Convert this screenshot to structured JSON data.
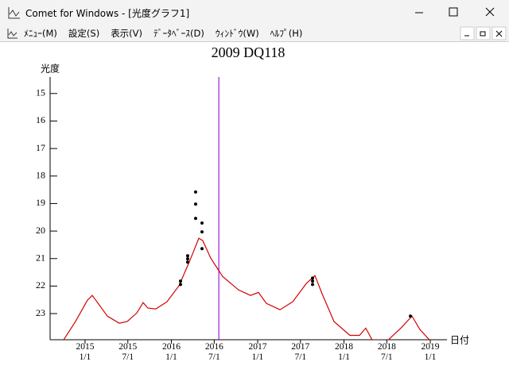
{
  "window": {
    "title": "Comet for Windows - [光度グラフ1]"
  },
  "menu": [
    "ﾒﾆｭｰ(M)",
    "設定(S)",
    "表示(V)",
    "ﾃﾞｰﾀﾍﾞｰｽ(D)",
    "ｳｨﾝﾄﾞｳ(W)",
    "ﾍﾙﾌﾟ(H)"
  ],
  "chart_data": {
    "type": "line",
    "title": "2009 DQ118",
    "y_label": "光度",
    "x_label": "日付",
    "xlim": [
      2014.595,
      2019.175
    ],
    "ylim": [
      23.95,
      14.4
    ],
    "yticks": [
      15,
      16,
      17,
      18,
      19,
      20,
      21,
      22,
      23
    ],
    "xticks": [
      {
        "value": 2015.0,
        "label": "2015\n1/1"
      },
      {
        "value": 2015.496,
        "label": "2015\n7/1"
      },
      {
        "value": 2016.0,
        "label": "2016\n1/1"
      },
      {
        "value": 2016.497,
        "label": "2016\n7/1"
      },
      {
        "value": 2017.0,
        "label": "2017\n1/1"
      },
      {
        "value": 2017.496,
        "label": "2017\n7/1"
      },
      {
        "value": 2018.0,
        "label": "2018\n1/1"
      },
      {
        "value": 2018.496,
        "label": "2018\n7/1"
      },
      {
        "value": 2019.0,
        "label": "2019\n1/1"
      }
    ],
    "marker_x": 2016.55,
    "marker_color": "#9a1ee0",
    "series": [
      {
        "color": "#d40000",
        "x": [
          2014.751,
          2014.889,
          2015.028,
          2015.083,
          2015.138,
          2015.258,
          2015.396,
          2015.488,
          2015.599,
          2015.673,
          2015.728,
          2015.82,
          2015.949,
          2016.088,
          2016.207,
          2016.318,
          2016.364,
          2016.456,
          2016.594,
          2016.779,
          2016.917,
          2017.009,
          2017.101,
          2017.258,
          2017.406,
          2017.562,
          2017.664,
          2017.747,
          2017.885,
          2018.069,
          2018.18,
          2018.253,
          2018.327,
          2018.512,
          2018.668,
          2018.788,
          2018.88,
          2018.991
        ],
        "values": [
          23.96,
          23.29,
          22.51,
          22.34,
          22.57,
          23.09,
          23.35,
          23.29,
          22.98,
          22.6,
          22.8,
          22.83,
          22.57,
          21.99,
          21.13,
          20.26,
          20.35,
          20.98,
          21.65,
          22.14,
          22.34,
          22.23,
          22.63,
          22.86,
          22.57,
          21.91,
          21.62,
          22.28,
          23.29,
          23.79,
          23.79,
          23.53,
          23.96,
          23.96,
          23.5,
          23.09,
          23.58,
          23.96
        ]
      },
      {
        "color": "#000000",
        "x": [
          2016.281,
          2016.281,
          2016.281,
          2016.355,
          2016.355,
          2016.355,
          2016.189,
          2016.189,
          2016.189,
          2016.106,
          2016.106,
          2017.636,
          2017.636,
          2017.636,
          2018.77
        ],
        "values": [
          18.58,
          19.02,
          19.54,
          19.71,
          20.03,
          20.64,
          20.9,
          21.01,
          21.13,
          21.82,
          21.94,
          21.71,
          21.82,
          21.94,
          23.09
        ]
      }
    ]
  }
}
